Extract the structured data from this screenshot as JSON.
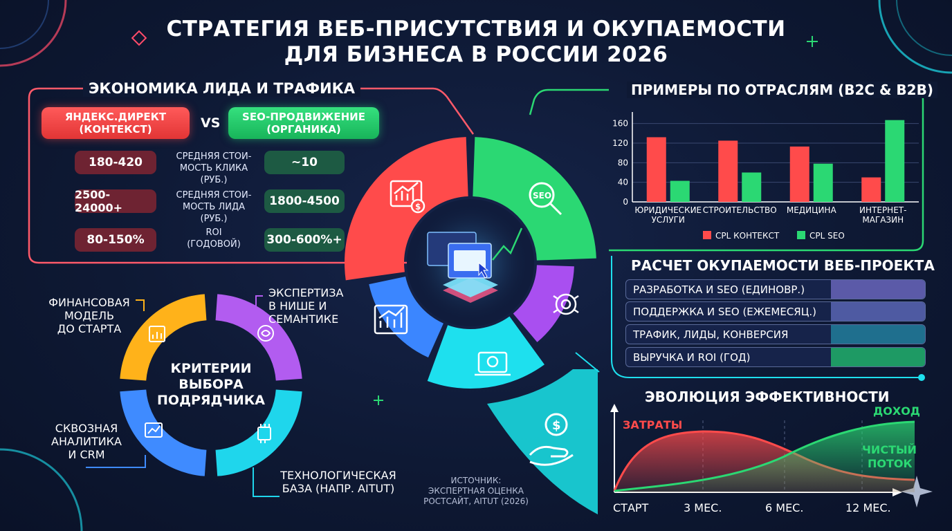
{
  "title": {
    "line1": "СТРАТЕГИЯ ВЕБ-ПРИСУТСТВИЯ И ОКУПАЕМОСТИ",
    "line2": "ДЛЯ БИЗНЕСА В РОССИИ 2026"
  },
  "lead_economics": {
    "title": "ЭКОНОМИКА ЛИДА И ТРАФИКА",
    "left_head": {
      "line1": "ЯНДЕКС.ДИРЕКТ",
      "line2": "(КОНТЕКСТ)"
    },
    "vs": "VS",
    "right_head": {
      "line1": "SEO-ПРОДВИЖЕНИЕ",
      "line2": "(ОРГАНИКА)"
    },
    "rows": [
      {
        "left": "180-420",
        "label1": "СРЕДНЯЯ СТОИ-",
        "label2": "МОСТЬ КЛИКА (РУБ.)",
        "right": "~10"
      },
      {
        "left": "2500-24000+",
        "label1": "СРЕДНЯЯ СТОИ-",
        "label2": "МОСТЬ ЛИДА (РУБ.)",
        "right": "1800-4500"
      },
      {
        "left": "80-150%",
        "label1": "ROI",
        "label2": "(ГОДОВОЙ)",
        "right": "300-600%+"
      }
    ],
    "colors": {
      "red": "#ff4b4b",
      "green": "#2bd873",
      "border": "#ff6a6a"
    }
  },
  "criteria": {
    "center": {
      "line1": "КРИТЕРИИ",
      "line2": "ВЫБОРА",
      "line3": "ПОДРЯДЧИКА"
    },
    "items": [
      {
        "line1": "ФИНАНСОВАЯ",
        "line2": "МОДЕЛЬ",
        "line3": "ДО СТАРТА",
        "color": "#ffb21a"
      },
      {
        "line1": "ЭКСПЕРТИЗА",
        "line2": "В НИШЕ И",
        "line3": "СЕМАНТИКЕ",
        "color": "#b25cf0"
      },
      {
        "line1": "ТЕХНОЛОГИЧЕСКАЯ",
        "line2": "БАЗА (НАПР. AITUT)",
        "color": "#1fd6ec"
      },
      {
        "line1": "СКВОЗНАЯ",
        "line2": "АНАЛИТИКА",
        "line3": "И CRM",
        "color": "#3f8bff"
      }
    ]
  },
  "source": {
    "line1": "ИСТОЧНИК:",
    "line2": "ЭКСПЕРТНАЯ ОЦЕНКА",
    "line3": "РОСТСАЙТ, AITUT (2026)"
  },
  "wheel_colors": [
    "#ff4b4b",
    "#2bd873",
    "#a94ff0",
    "#1ee0ee",
    "#3b86ff"
  ],
  "chart_data": [
    {
      "type": "bar",
      "title": "ПРИМЕРЫ ПО ОТРАСЛЯМ (B2C & B2B)",
      "categories": [
        {
          "line1": "ЮРИДИЧЕСКИЕ",
          "line2": "УСЛУГИ"
        },
        {
          "line1": "СТРОИТЕЛЬСТВО",
          "line2": ""
        },
        {
          "line1": "МЕДИЦИНА",
          "line2": ""
        },
        {
          "line1": "ИНТЕРНЕТ-",
          "line2": "МАГАЗИН"
        }
      ],
      "series": [
        {
          "name": "CPL КОНТЕКСТ",
          "values": [
            132,
            125,
            113,
            50
          ],
          "color": "#ff4b4b"
        },
        {
          "name": "CPL SEO",
          "values": [
            43,
            60,
            78,
            167
          ],
          "color": "#2bd873"
        }
      ],
      "yticks": [
        "0",
        "40",
        "80",
        "120",
        "160"
      ],
      "ylim": [
        0,
        175
      ],
      "grid": true,
      "legend": "bottom"
    },
    {
      "type": "area",
      "title": "ЭВОЛЮЦИЯ ЭФФЕКТИВНОСТИ",
      "x_ticks": [
        "СТАРТ",
        "3 МЕС.",
        "6 МЕС.",
        "12 МЕС."
      ],
      "series": [
        {
          "name": "ЗАТРАТЫ",
          "color": "#ff5a5a"
        },
        {
          "name": "ДОХОД",
          "color": "#2bd873"
        }
      ],
      "annotation": {
        "line1": "ЧИСТЫЙ",
        "line2": "ПОТОК"
      }
    }
  ],
  "roi_calc": {
    "title": "РАСЧЕТ ОКУПАЕМОСТИ ВЕБ-ПРОЕКТА",
    "rows": [
      {
        "label": "РАЗРАБОТКА И SEO (ЕДИНОВР.)",
        "color": "#5b5aa8"
      },
      {
        "label": "ПОДДЕРЖКА И SEO (ЕЖЕМЕСЯЦ.)",
        "color": "#4e5aa2"
      },
      {
        "label": "ТРАФИК, ЛИДЫ, КОНВЕРСИЯ",
        "color": "#1f6f8e"
      },
      {
        "label": "ВЫРУЧКА И ROI (ГОД)",
        "color": "#1e9a64"
      }
    ]
  }
}
